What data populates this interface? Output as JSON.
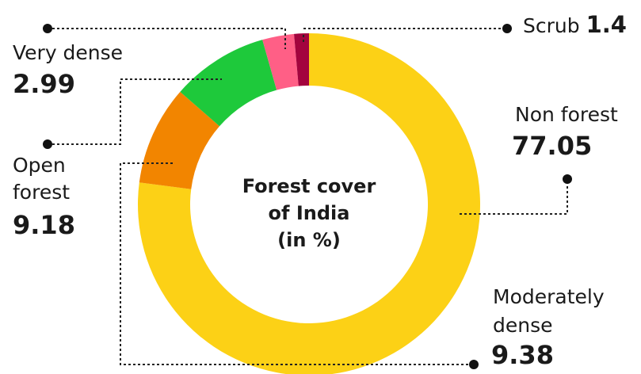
{
  "colors": {
    "non_forest": "#fcd116",
    "moderately_dense": "#f28500",
    "open_forest": "#1ec93b",
    "very_dense": "#ff5f86",
    "scrub": "#a3043e",
    "leader": "#222222"
  },
  "chart_data": {
    "type": "pie",
    "style": "donut",
    "title": "Forest cover of India (in %)",
    "title_lines": [
      "Forest cover",
      "of India",
      "(in %)"
    ],
    "slices": [
      {
        "key": "non_forest",
        "label": "Non forest",
        "value": 77.05,
        "value_text": "77.05",
        "color": "#fcd116"
      },
      {
        "key": "moderately_dense",
        "label_lines": [
          "Moderately",
          "dense"
        ],
        "value": 9.38,
        "value_text": "9.38",
        "color": "#f28500"
      },
      {
        "key": "open_forest",
        "label_lines": [
          "Open",
          "forest"
        ],
        "value": 9.18,
        "value_text": "9.18",
        "color": "#1ec93b"
      },
      {
        "key": "very_dense",
        "label": "Very dense",
        "value": 2.99,
        "value_text": "2.99",
        "color": "#ff5f86"
      },
      {
        "key": "scrub",
        "label": "Scrub",
        "value": 1.4,
        "value_text": "1.4",
        "color": "#a3043e"
      }
    ]
  }
}
